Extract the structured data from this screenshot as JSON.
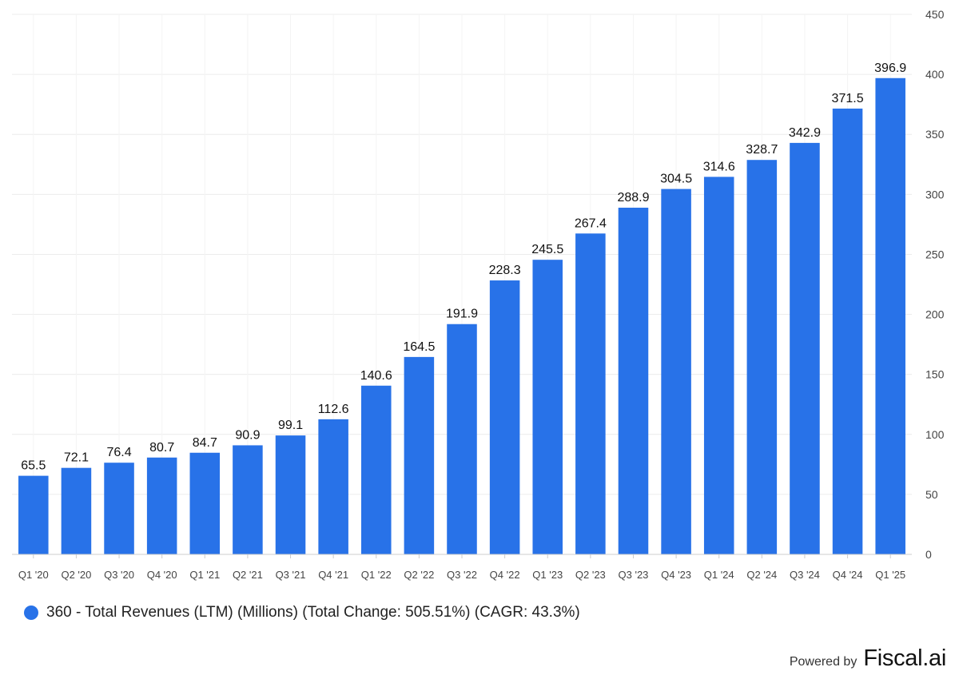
{
  "chart_data": {
    "type": "bar",
    "categories": [
      "Q1 '20",
      "Q2 '20",
      "Q3 '20",
      "Q4 '20",
      "Q1 '21",
      "Q2 '21",
      "Q3 '21",
      "Q4 '21",
      "Q1 '22",
      "Q2 '22",
      "Q3 '22",
      "Q4 '22",
      "Q1 '23",
      "Q2 '23",
      "Q3 '23",
      "Q4 '23",
      "Q1 '24",
      "Q2 '24",
      "Q3 '24",
      "Q4 '24",
      "Q1 '25"
    ],
    "series": [
      {
        "name": "360 - Total Revenues (LTM) (Millions) (Total Change: 505.51%) (CAGR: 43.3%)",
        "values": [
          65.5,
          72.1,
          76.4,
          80.7,
          84.7,
          90.9,
          99.1,
          112.6,
          140.6,
          164.5,
          191.9,
          228.3,
          245.5,
          267.4,
          288.9,
          304.5,
          314.6,
          328.7,
          342.9,
          371.5,
          396.9
        ],
        "color": "#2872e8"
      }
    ],
    "data_labels": [
      "65.5",
      "72.1",
      "76.4",
      "80.7",
      "84.7",
      "90.9",
      "99.1",
      "112.6",
      "140.6",
      "164.5",
      "191.9",
      "228.3",
      "245.5",
      "267.4",
      "288.9",
      "304.5",
      "314.6",
      "328.7",
      "342.9",
      "371.5",
      "396.9"
    ],
    "ylim": [
      0,
      450
    ],
    "yticks": [
      0,
      50,
      100,
      150,
      200,
      250,
      300,
      350,
      400,
      450
    ],
    "y_axis_position": "right",
    "grid": true,
    "legend_position": "bottom-left",
    "title": "",
    "xlabel": "",
    "ylabel": ""
  },
  "legend": {
    "label": "360 - Total Revenues (LTM) (Millions) (Total Change: 505.51%) (CAGR: 43.3%)",
    "color": "#2872e8"
  },
  "footer": {
    "powered_by": "Powered by",
    "brand": "Fiscal.ai"
  }
}
